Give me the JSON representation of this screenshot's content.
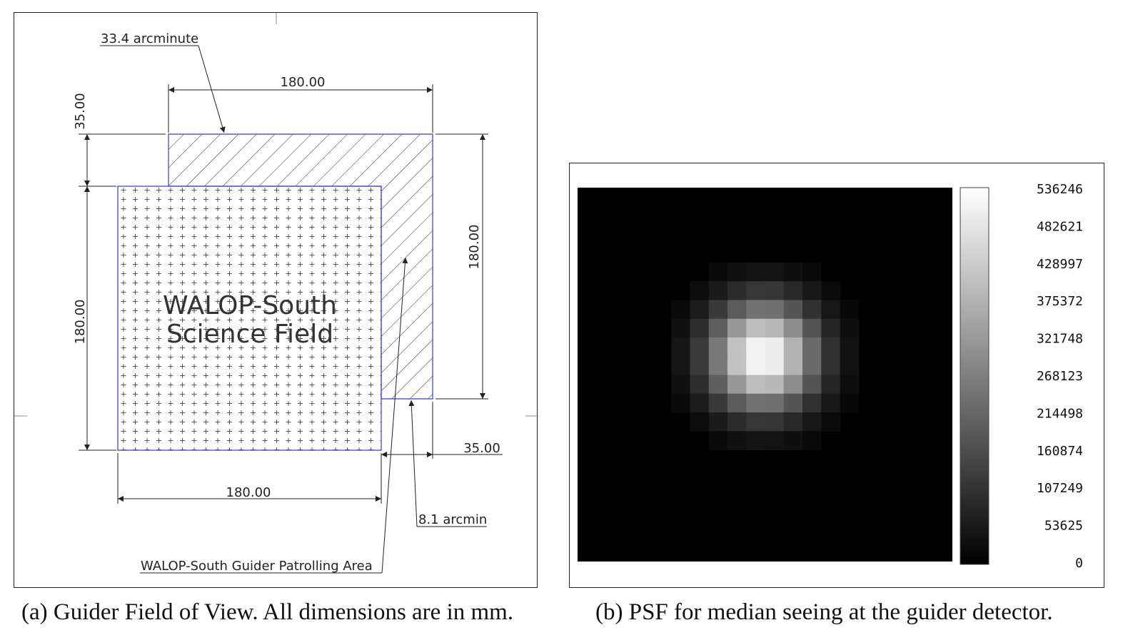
{
  "panel_a": {
    "caption": "(a) Guider Field of View. All dimensions are in mm.",
    "science_field_line1": "WALOP-South",
    "science_field_line2": "Science Field",
    "dim_top_width": "180.00",
    "dim_top_height": "35.00",
    "dim_right_height": "180.00",
    "dim_left_height": "180.00",
    "dim_bottom_width": "180.00",
    "dim_right_width": "35.00",
    "label_arcminute": "33.4 arcminute",
    "label_arcmin": "8.1 arcmin",
    "label_patrol": "WALOP-South Guider Patrolling Area",
    "colors": {
      "outline": "#3a3acc",
      "lines": "#222222"
    }
  },
  "panel_b": {
    "caption": "(b) PSF for median seeing at the guider detector.",
    "colorbar_ticks": [
      "536246",
      "482621",
      "428997",
      "375372",
      "321748",
      "268123",
      "214498",
      "160874",
      "107249",
      "53625",
      "0"
    ],
    "colormap": "grayscale"
  }
}
